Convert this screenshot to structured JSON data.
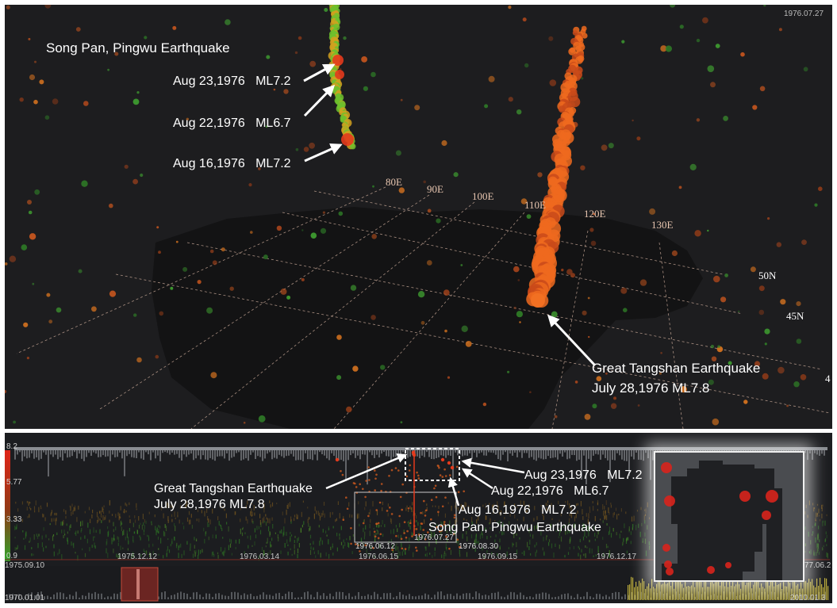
{
  "view3d": {
    "corner_date": "1976.07.27",
    "longitude_labels": [
      "80E",
      "90E",
      "100E",
      "110E",
      "120E",
      "130E"
    ],
    "latitude_labels": [
      "50N",
      "45N"
    ],
    "song_pan_title": "Song Pan, Pingwu Earthquake",
    "song_pan_events": [
      {
        "date": "Aug 23,1976",
        "mag": "ML7.2"
      },
      {
        "date": "Aug 22,1976",
        "mag": "ML6.7"
      },
      {
        "date": "Aug 16,1976",
        "mag": "ML7.2"
      }
    ],
    "tangshan_line1": "Great Tangshan Earthquake",
    "tangshan_line2": "July 28,1976 ML7.8",
    "edge_glyph": "4"
  },
  "timeline": {
    "magnitude_scale": [
      "8.2",
      "5.77",
      "3.33",
      "0.9"
    ],
    "tick_dates": [
      "1975.12.12",
      "1976.03.14",
      "1976.06.15",
      "1976.09.15",
      "1976.12.17"
    ],
    "range_start": "1975.09.10",
    "range_end_fragment": "77.06.2",
    "selection_dates": [
      "1976.06.12",
      "1976.07.27",
      "1976.08.30"
    ],
    "overview_start": "1970.01.01",
    "overview_end": "2010.01.3",
    "tangshan_line1": "Great Tangshan Earthquake",
    "tangshan_line2": "July 28,1976 ML7.8",
    "song_pan_title": "Song Pan, Pingwu Earthquake",
    "song_pan_events": [
      {
        "date": "Aug 23,1976",
        "mag": "ML7.2"
      },
      {
        "date": "Aug 22,1976",
        "mag": "ML6.7"
      },
      {
        "date": "Aug 16,1976",
        "mag": "ML7.2"
      }
    ]
  },
  "colors": {
    "high_mag": "#e53a1c",
    "mid_mag": "#e86a22",
    "low_mag": "#3aa52a",
    "overview_highlight": "#d8c640"
  }
}
